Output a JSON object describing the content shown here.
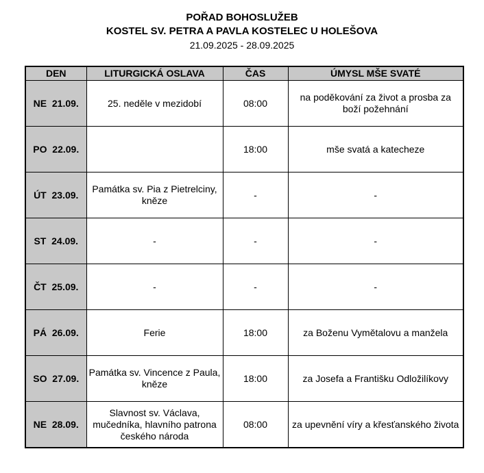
{
  "header": {
    "title": "POŘAD BOHOSLUŽEB",
    "church": "KOSTEL SV. PETRA A PAVLA KOSTELEC U HOLEŠOVA",
    "period": "21.09.2025 - 28.09.2025"
  },
  "columns": [
    "DEN",
    "LITURGICKÁ OSLAVA",
    "ČAS",
    "ÚMYSL MŠE SVATÉ"
  ],
  "rows": [
    {
      "day": "NE  21.09.",
      "celebration": "25. neděle v mezidobí",
      "time": "08:00",
      "intention": "na poděkování za život a prosba za boží požehnání"
    },
    {
      "day": "PO  22.09.",
      "celebration": "",
      "time": "18:00",
      "intention": "mše svatá a katecheze"
    },
    {
      "day": "ÚT  23.09.",
      "celebration": "Památka sv. Pia z Pietrelciny, kněze",
      "time": "-",
      "intention": "-"
    },
    {
      "day": "ST  24.09.",
      "celebration": "-",
      "time": "-",
      "intention": "-"
    },
    {
      "day": "ČT  25.09.",
      "celebration": "-",
      "time": "-",
      "intention": "-"
    },
    {
      "day": "PÁ  26.09.",
      "celebration": "Ferie",
      "time": "18:00",
      "intention": "za Boženu Vymětalovu a manžela"
    },
    {
      "day": "SO  27.09.",
      "celebration": "Památka sv. Vincence z Paula, kněze",
      "time": "18:00",
      "intention": "za Josefa a Františku Odložilíkovy"
    },
    {
      "day": "NE  28.09.",
      "celebration": "Slavnost sv. Václava, mučedníka, hlavního patrona českého národa",
      "time": "08:00",
      "intention": "za upevnění víry a křesťanského života"
    }
  ]
}
